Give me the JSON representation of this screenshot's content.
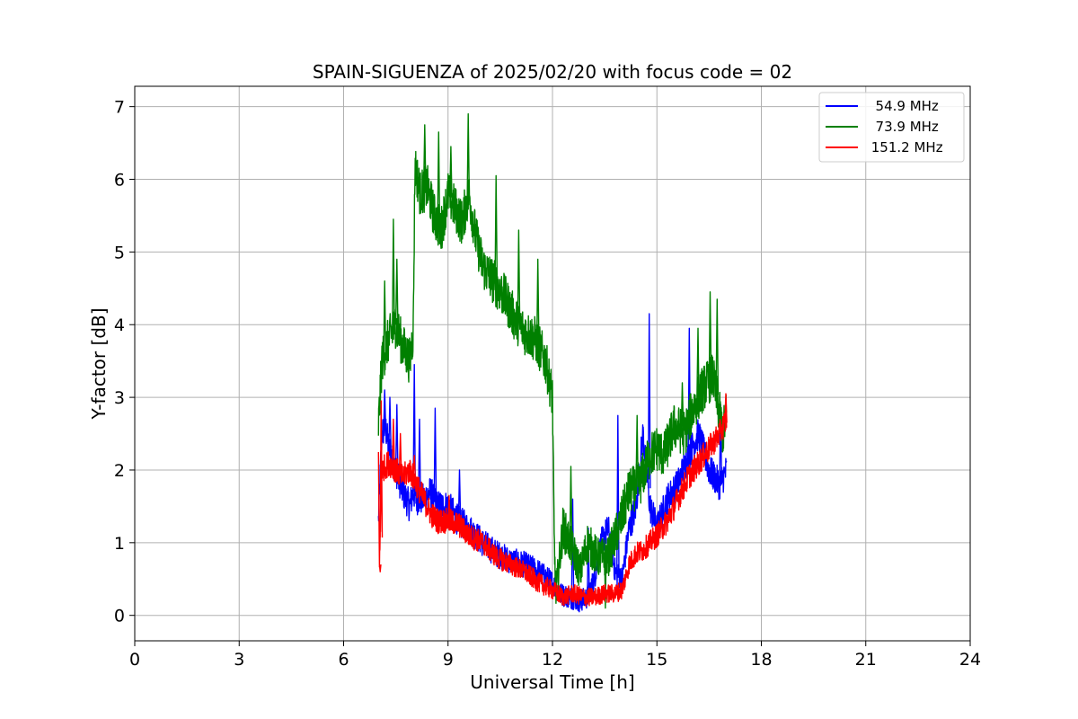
{
  "chart_data": {
    "type": "line",
    "title": "SPAIN-SIGUENZA of 2025/02/20 with focus code = 02",
    "xlabel": "Universal Time [h]",
    "ylabel": "Y-factor [dB]",
    "xlim": [
      0,
      24
    ],
    "ylim": [
      -0.35,
      7.28
    ],
    "xticks": [
      0,
      3,
      6,
      9,
      12,
      15,
      18,
      21,
      24
    ],
    "yticks": [
      0,
      1,
      2,
      3,
      4,
      5,
      6,
      7
    ],
    "grid": true,
    "legend_position": "top-right",
    "series": [
      {
        "name": "  54.9 MHz",
        "color": "#0000ff",
        "x": [
          7.0,
          7.1,
          7.2,
          7.3,
          7.5,
          7.7,
          7.9,
          8.0,
          8.1,
          8.3,
          8.5,
          8.7,
          9.0,
          9.3,
          9.6,
          10.0,
          10.4,
          10.8,
          11.2,
          11.6,
          12.0,
          12.2,
          12.5,
          12.8,
          13.0,
          13.2,
          13.4,
          13.6,
          13.8,
          14.0,
          14.2,
          14.4,
          14.6,
          14.8,
          15.0,
          15.3,
          15.6,
          15.9,
          16.2,
          16.5,
          16.8,
          17.0
        ],
        "y": [
          1.3,
          2.5,
          2.6,
          2.3,
          2.0,
          1.7,
          1.5,
          1.7,
          1.6,
          1.6,
          1.7,
          1.5,
          1.5,
          1.3,
          1.2,
          1.0,
          0.85,
          0.75,
          0.7,
          0.6,
          0.45,
          0.3,
          0.25,
          0.2,
          0.25,
          0.5,
          1.0,
          1.2,
          0.6,
          0.5,
          1.2,
          1.5,
          2.5,
          1.5,
          1.2,
          1.6,
          1.8,
          2.2,
          2.5,
          2.0,
          1.8,
          2.0
        ],
        "spikes": [
          [
            7.15,
            3.1
          ],
          [
            7.3,
            3.0
          ],
          [
            7.5,
            2.9
          ],
          [
            8.0,
            3.45
          ],
          [
            8.15,
            2.7
          ],
          [
            8.6,
            2.85
          ],
          [
            9.3,
            2.0
          ],
          [
            12.55,
            1.6
          ],
          [
            13.0,
            1.2
          ],
          [
            13.85,
            2.75
          ],
          [
            14.75,
            4.15
          ],
          [
            15.9,
            3.95
          ],
          [
            16.8,
            2.9
          ]
        ],
        "min_spike": [
          12.75,
          0.05
        ]
      },
      {
        "name": "  73.9 MHz",
        "color": "#008000",
        "x": [
          7.0,
          7.1,
          7.3,
          7.5,
          7.7,
          7.9,
          8.0,
          8.05,
          8.2,
          8.4,
          8.6,
          8.8,
          9.0,
          9.2,
          9.4,
          9.6,
          9.8,
          10.0,
          10.3,
          10.6,
          10.9,
          11.2,
          11.5,
          11.8,
          12.0,
          12.05,
          12.1,
          12.3,
          12.5,
          12.8,
          13.0,
          13.3,
          13.6,
          13.9,
          14.2,
          14.5,
          14.8,
          15.0,
          15.2,
          15.5,
          15.8,
          16.0,
          16.3,
          16.6,
          16.9,
          17.0
        ],
        "y": [
          2.6,
          3.5,
          3.8,
          4.0,
          3.7,
          3.5,
          3.9,
          6.2,
          5.8,
          5.9,
          5.5,
          5.3,
          5.8,
          5.6,
          5.4,
          5.8,
          5.2,
          4.8,
          4.6,
          4.4,
          4.1,
          3.9,
          3.8,
          3.5,
          3.0,
          1.0,
          0.3,
          1.2,
          1.0,
          0.6,
          1.0,
          0.8,
          0.8,
          1.2,
          1.7,
          1.8,
          2.2,
          2.3,
          2.2,
          2.6,
          2.5,
          2.8,
          3.1,
          3.3,
          2.5,
          2.8
        ],
        "spikes": [
          [
            7.15,
            4.6
          ],
          [
            7.5,
            4.9
          ],
          [
            7.4,
            5.45
          ],
          [
            8.3,
            6.75
          ],
          [
            8.7,
            6.65
          ],
          [
            9.05,
            6.45
          ],
          [
            9.55,
            6.9
          ],
          [
            10.35,
            6.05
          ],
          [
            11.0,
            5.3
          ],
          [
            11.55,
            4.9
          ],
          [
            12.5,
            2.05
          ],
          [
            14.4,
            2.75
          ],
          [
            15.7,
            3.2
          ],
          [
            16.15,
            3.95
          ],
          [
            16.5,
            4.45
          ],
          [
            16.7,
            4.35
          ]
        ],
        "min_spike": [
          13.5,
          0.1
        ]
      },
      {
        "name": " 151.2 MHz",
        "color": "#ff0000",
        "x": [
          7.0,
          7.03,
          7.1,
          7.3,
          7.5,
          7.7,
          7.9,
          8.1,
          8.3,
          8.5,
          8.7,
          9.0,
          9.3,
          9.6,
          10.0,
          10.4,
          10.8,
          11.2,
          11.6,
          12.0,
          12.3,
          12.6,
          12.9,
          13.2,
          13.5,
          13.8,
          14.0,
          14.2,
          14.4,
          14.6,
          14.8,
          15.0,
          15.3,
          15.6,
          15.9,
          16.2,
          16.5,
          16.8,
          17.0
        ],
        "y": [
          2.2,
          0.7,
          2.0,
          2.1,
          2.0,
          1.9,
          2.0,
          1.8,
          1.6,
          1.4,
          1.3,
          1.3,
          1.25,
          1.1,
          1.0,
          0.8,
          0.7,
          0.6,
          0.45,
          0.35,
          0.25,
          0.3,
          0.25,
          0.25,
          0.3,
          0.3,
          0.35,
          0.7,
          0.85,
          0.9,
          1.0,
          1.1,
          1.3,
          1.6,
          1.9,
          2.1,
          2.3,
          2.5,
          2.7
        ],
        "spikes": [
          [
            7.05,
            2.95
          ],
          [
            7.4,
            2.7
          ],
          [
            7.6,
            2.5
          ],
          [
            8.0,
            2.2
          ],
          [
            9.0,
            1.65
          ],
          [
            16.95,
            3.05
          ]
        ],
        "min_spike": [
          7.03,
          0.6
        ]
      }
    ]
  }
}
